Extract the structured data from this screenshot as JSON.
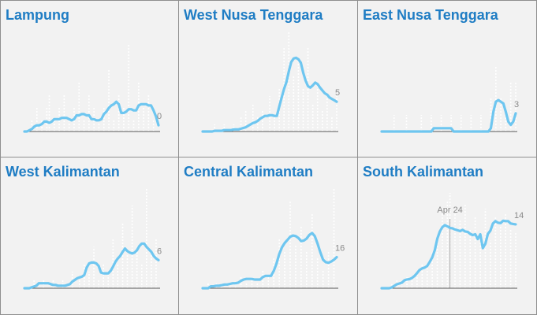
{
  "chart_data": [
    {
      "type": "line",
      "title": "Lampung",
      "xlabel": "",
      "ylabel": "",
      "ylim": [
        0,
        8
      ],
      "end_label": "0",
      "annotation": null,
      "series": [
        {
          "values": [
            0,
            0,
            0.1,
            0.2,
            0.4,
            0.5,
            0.5,
            0.6,
            0.8,
            0.8,
            0.7,
            0.8,
            1,
            1,
            1,
            1.1,
            1.1,
            1.1,
            1,
            0.9,
            1,
            1.3,
            1.3,
            1.4,
            1.4,
            1.3,
            1.3,
            1,
            1,
            0.9,
            0.9,
            1,
            1.4,
            1.6,
            1.9,
            2.1,
            2.2,
            2.4,
            2.2,
            1.5,
            1.5,
            1.6,
            1.8,
            1.8,
            1.7,
            1.7,
            2.1,
            2.2,
            2.2,
            2.2,
            2.1,
            2.1,
            1.7,
            1.2,
            0.5
          ]
        },
        {
          "values": [
            0,
            0,
            0,
            1,
            0,
            2,
            0,
            1,
            0,
            2,
            3,
            0,
            1,
            0,
            2,
            0,
            3,
            0,
            1,
            0,
            2,
            0,
            4,
            0,
            1,
            0,
            3,
            0,
            2,
            0,
            1,
            0,
            2,
            0,
            5,
            0,
            1,
            0,
            3,
            0,
            2,
            0,
            7,
            0,
            1,
            0,
            4,
            0,
            2,
            0,
            3,
            0,
            1,
            0,
            0
          ]
        }
      ]
    },
    {
      "type": "line",
      "title": "West Nusa Tenggara",
      "xlabel": "",
      "ylabel": "",
      "ylim": [
        0,
        14
      ],
      "end_label": "5",
      "annotation": null,
      "series": [
        {
          "values": [
            0,
            0,
            0,
            0,
            0,
            0.1,
            0.1,
            0.1,
            0.1,
            0.2,
            0.2,
            0.2,
            0.2,
            0.3,
            0.3,
            0.3,
            0.4,
            0.5,
            0.6,
            0.8,
            1,
            1.2,
            1.3,
            1.5,
            1.8,
            2,
            2.2,
            2.2,
            2.3,
            2.3,
            2.2,
            2.2,
            3.5,
            4.8,
            6,
            7,
            8.5,
            9.8,
            10.3,
            10.4,
            10.2,
            9.7,
            8.3,
            7.2,
            6.4,
            6.2,
            6.5,
            6.9,
            6.7,
            6.2,
            5.8,
            5.4,
            5.2,
            4.8,
            4.6,
            4.4,
            4.2
          ]
        },
        {
          "values": [
            0,
            0,
            0,
            0,
            0,
            1,
            0,
            0,
            0,
            1,
            0,
            0,
            0,
            1,
            0,
            0,
            2,
            0,
            3,
            0,
            0,
            4,
            0,
            2,
            0,
            3,
            0,
            0,
            5,
            0,
            2,
            0,
            6,
            0,
            12,
            0,
            14,
            0,
            8,
            0,
            10,
            0,
            6,
            0,
            12,
            0,
            4,
            0,
            7,
            0,
            3,
            0,
            5,
            0,
            2,
            0,
            5
          ]
        }
      ]
    },
    {
      "type": "line",
      "title": "East Nusa Tenggara",
      "xlabel": "",
      "ylabel": "",
      "ylim": [
        0,
        6
      ],
      "end_label": "3",
      "annotation": null,
      "series": [
        {
          "values": [
            0,
            0,
            0,
            0,
            0,
            0,
            0,
            0,
            0,
            0,
            0,
            0,
            0,
            0,
            0,
            0,
            0,
            0,
            0,
            0,
            0,
            0.2,
            0.2,
            0.2,
            0.2,
            0.2,
            0.2,
            0.2,
            0.2,
            0,
            0,
            0,
            0,
            0,
            0,
            0,
            0,
            0,
            0,
            0,
            0,
            0,
            0,
            0,
            0.2,
            1.2,
            1.8,
            1.9,
            1.8,
            1.7,
            1.2,
            0.6,
            0.4,
            0.6,
            1.1
          ]
        },
        {
          "values": [
            0,
            0,
            0,
            0,
            0,
            1,
            0,
            0,
            0,
            0,
            1,
            0,
            0,
            0,
            0,
            0,
            1,
            0,
            0,
            0,
            1,
            0,
            0,
            0,
            1,
            0,
            0,
            0,
            1,
            0,
            0,
            0,
            1,
            0,
            0,
            0,
            1,
            0,
            0,
            0,
            1,
            0,
            0,
            0,
            2,
            0,
            4,
            0,
            2,
            0,
            1,
            0,
            3,
            0,
            3
          ]
        }
      ]
    },
    {
      "type": "line",
      "title": "West Kalimantan",
      "xlabel": "",
      "ylabel": "",
      "ylim": [
        0,
        12
      ],
      "end_label": "6",
      "annotation": null,
      "series": [
        {
          "values": [
            0,
            0,
            0,
            0.1,
            0.2,
            0.3,
            0.6,
            0.6,
            0.6,
            0.6,
            0.6,
            0.5,
            0.4,
            0.4,
            0.3,
            0.3,
            0.3,
            0.3,
            0.4,
            0.5,
            0.8,
            1,
            1.2,
            1.3,
            1.4,
            1.6,
            2.5,
            3,
            3.1,
            3.1,
            3,
            2.7,
            1.9,
            1.8,
            1.8,
            1.8,
            2.1,
            2.6,
            3.2,
            3.6,
            3.9,
            4.4,
            4.8,
            4.5,
            4.3,
            4.2,
            4.3,
            4.6,
            5.1,
            5.4,
            5.4,
            5,
            4.7,
            4.4,
            3.9,
            3.6,
            3.4
          ]
        },
        {
          "values": [
            0,
            0,
            0,
            0,
            1,
            0,
            0,
            0,
            1,
            0,
            0,
            0,
            1,
            0,
            0,
            0,
            1,
            0,
            0,
            0,
            2,
            0,
            0,
            1,
            0,
            3,
            0,
            2,
            0,
            5,
            0,
            1,
            0,
            3,
            0,
            2,
            0,
            6,
            0,
            3,
            0,
            8,
            0,
            4,
            0,
            10,
            0,
            5,
            0,
            3,
            0,
            12,
            0,
            4,
            0,
            6,
            0
          ]
        }
      ]
    },
    {
      "type": "line",
      "title": "Central Kalimantan",
      "xlabel": "",
      "ylabel": "",
      "ylim": [
        0,
        16
      ],
      "end_label": "16",
      "annotation": null,
      "series": [
        {
          "values": [
            0,
            0,
            0,
            0.3,
            0.3,
            0.4,
            0.4,
            0.5,
            0.6,
            0.6,
            0.7,
            0.8,
            0.8,
            0.9,
            1.2,
            1.4,
            1.5,
            1.5,
            1.5,
            1.4,
            1.4,
            1.4,
            1.8,
            2,
            2,
            2,
            2.8,
            4,
            5.5,
            6.6,
            7.3,
            7.8,
            8.3,
            8.5,
            8.4,
            8.1,
            7.6,
            7.7,
            8,
            8.6,
            8.9,
            8.4,
            7.2,
            5.8,
            4.6,
            4.2,
            4.1,
            4.3,
            4.6,
            5
          ]
        },
        {
          "values": [
            0,
            0,
            1,
            0,
            0,
            1,
            0,
            1,
            0,
            0,
            1,
            0,
            1,
            0,
            2,
            0,
            1,
            0,
            2,
            0,
            1,
            0,
            3,
            0,
            2,
            0,
            5,
            0,
            8,
            0,
            6,
            0,
            14,
            0,
            7,
            0,
            10,
            0,
            6,
            0,
            12,
            0,
            5,
            0,
            3,
            0,
            6,
            0,
            16,
            0
          ]
        }
      ]
    },
    {
      "type": "line",
      "title": "South Kalimantan",
      "xlabel": "",
      "ylabel": "",
      "ylim": [
        0,
        25
      ],
      "end_label": "14",
      "annotation": {
        "label": "Apr 24",
        "index": 27
      },
      "series": [
        {
          "values": [
            0,
            0,
            0,
            0,
            0.2,
            0.6,
            1,
            1.2,
            1.4,
            2,
            2.2,
            2.3,
            2.6,
            3.1,
            3.8,
            4.6,
            5,
            5.2,
            5.6,
            6.6,
            7.8,
            9.6,
            12.5,
            14.3,
            15.4,
            15.9,
            15.6,
            15.2,
            15.1,
            14.8,
            14.6,
            14.4,
            14.7,
            14.3,
            14.2,
            13.7,
            13.4,
            13.6,
            12.4,
            13.6,
            10.1,
            11.2,
            13.7,
            14.5,
            16.3,
            16.9,
            16.5,
            16.4,
            17,
            16.9,
            16.9,
            16.3,
            16.2,
            16.1
          ]
        },
        {
          "values": [
            0,
            0,
            0,
            0,
            1,
            0,
            2,
            0,
            1,
            0,
            3,
            0,
            2,
            0,
            4,
            0,
            6,
            0,
            5,
            0,
            9,
            0,
            13,
            0,
            20,
            0,
            22,
            24,
            0,
            19,
            0,
            17,
            0,
            21,
            0,
            15,
            0,
            18,
            0,
            14,
            0,
            20,
            0,
            12,
            0,
            18,
            0,
            16,
            0,
            19,
            0,
            15,
            0,
            14
          ]
        }
      ]
    }
  ]
}
